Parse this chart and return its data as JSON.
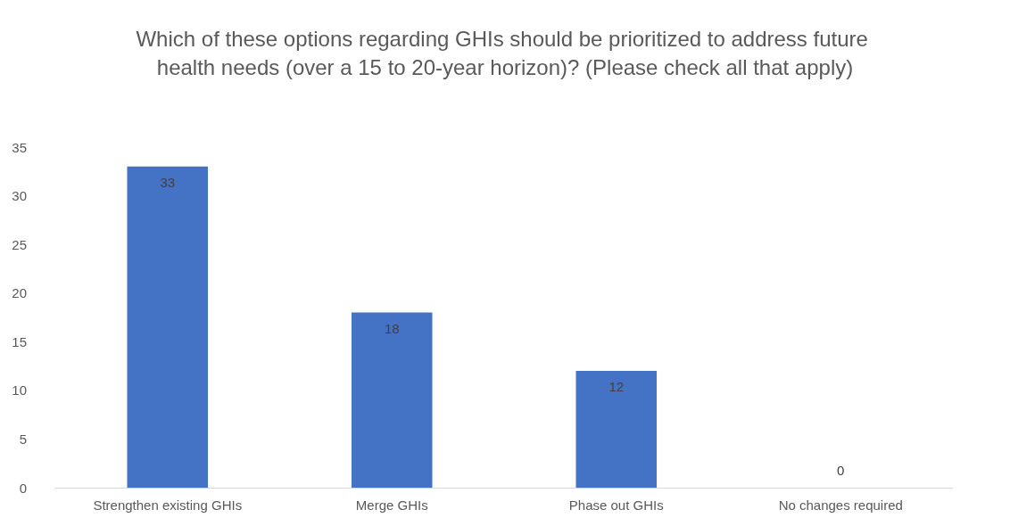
{
  "chart_data": {
    "type": "bar",
    "title": "Which of these options regarding GHIs should be prioritized to address future health needs (over a 15 to 20-year horizon)? (Please check all that apply)",
    "categories": [
      "Strengthen existing GHIs",
      "Merge GHIs",
      "Phase out GHIs",
      "No changes required"
    ],
    "values": [
      33,
      18,
      12,
      0
    ],
    "color": "#4472c4",
    "ylim": [
      0,
      35
    ],
    "yticks": [
      0,
      5,
      10,
      15,
      20,
      25,
      30,
      35
    ],
    "grid": false,
    "data_labels": true
  }
}
